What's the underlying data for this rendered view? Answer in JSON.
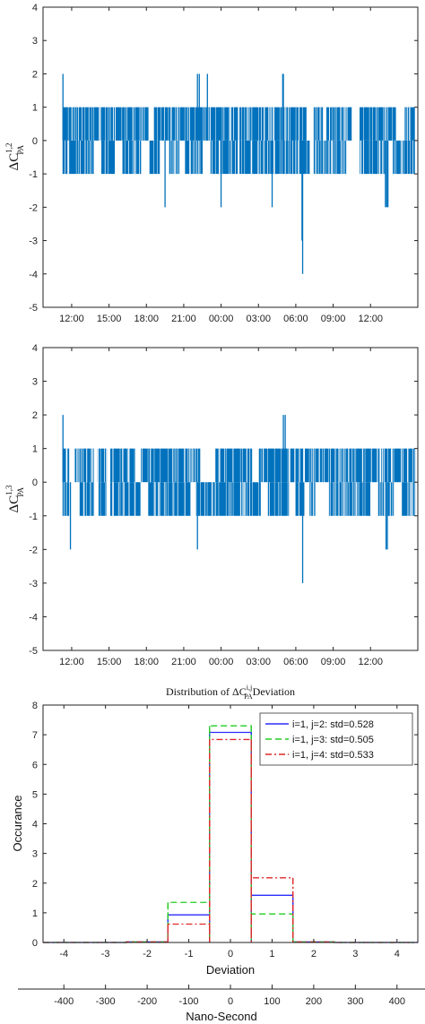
{
  "chart_data": [
    {
      "type": "line",
      "ylabel_base": "ΔC",
      "ylabel_sup": "1,2",
      "ylabel_sub": "PA",
      "ylim": [
        -5,
        4
      ],
      "yticks": [
        -5,
        -4,
        -3,
        -2,
        -1,
        0,
        1,
        2,
        3,
        4
      ],
      "xticks": [
        "12:00",
        "15:00",
        "18:00",
        "21:00",
        "00:00",
        "03:00",
        "06:00",
        "09:00",
        "12:00"
      ],
      "xrange_hours": [
        9.7,
        39.8
      ],
      "xtick_hours": [
        12,
        15,
        18,
        21,
        24,
        27,
        30,
        33,
        36
      ],
      "series": [
        {
          "values_range": [
            -1,
            1
          ],
          "color": "#0072BD"
        }
      ],
      "spikes": [
        {
          "x": 11.3,
          "y": 2
        },
        {
          "x": 19.5,
          "y": -2
        },
        {
          "x": 22.1,
          "y": 2
        },
        {
          "x": 22.25,
          "y": 2
        },
        {
          "x": 22.9,
          "y": 2
        },
        {
          "x": 24.0,
          "y": -2
        },
        {
          "x": 28.1,
          "y": -2
        },
        {
          "x": 28.95,
          "y": 2
        },
        {
          "x": 29.0,
          "y": 2
        },
        {
          "x": 30.5,
          "y": -3
        },
        {
          "x": 30.55,
          "y": -4
        },
        {
          "x": 37.2,
          "y": -2
        },
        {
          "x": 37.3,
          "y": -2
        },
        {
          "x": 37.4,
          "y": -2
        }
      ],
      "grid": false
    },
    {
      "type": "line",
      "ylabel_base": "ΔC",
      "ylabel_sup": "1,3",
      "ylabel_sub": "PA",
      "ylim": [
        -5,
        4
      ],
      "yticks": [
        -5,
        -4,
        -3,
        -2,
        -1,
        0,
        1,
        2,
        3,
        4
      ],
      "xticks": [
        "12:00",
        "15:00",
        "18:00",
        "21:00",
        "00:00",
        "03:00",
        "06:00",
        "09:00",
        "12:00"
      ],
      "xrange_hours": [
        9.7,
        39.8
      ],
      "xtick_hours": [
        12,
        15,
        18,
        21,
        24,
        27,
        30,
        33,
        36
      ],
      "series": [
        {
          "values_range": [
            -1,
            1
          ],
          "color": "#0072BD"
        }
      ],
      "spikes": [
        {
          "x": 11.3,
          "y": 2
        },
        {
          "x": 11.9,
          "y": -2
        },
        {
          "x": 22.1,
          "y": -2
        },
        {
          "x": 29.0,
          "y": 2
        },
        {
          "x": 29.15,
          "y": 2
        },
        {
          "x": 30.55,
          "y": -3
        },
        {
          "x": 37.25,
          "y": -2
        },
        {
          "x": 37.35,
          "y": -2
        }
      ],
      "grid": false
    },
    {
      "type": "bar",
      "title_prefix": "Distribution of ",
      "title_base": "ΔC",
      "title_sup": "i,j",
      "title_sub": "PA",
      "title_suffix": "Deviation",
      "xlabel": "Deviation",
      "ylabel": "Occurance",
      "ylim": [
        0,
        8
      ],
      "xlim": [
        -4.5,
        4.5
      ],
      "yticks": [
        0,
        1,
        2,
        3,
        4,
        5,
        6,
        7,
        8
      ],
      "xticks": [
        -4,
        -3,
        -2,
        -1,
        0,
        1,
        2,
        3,
        4
      ],
      "categories": [
        -4,
        -3,
        -2,
        -1,
        0,
        1,
        2,
        3,
        4
      ],
      "series": [
        {
          "name": "i=1, j=2: std=0.528",
          "color": "#2B2BFF",
          "dash": "",
          "values": [
            0,
            0,
            0.02,
            0.93,
            7.08,
            1.59,
            0.02,
            0,
            0
          ]
        },
        {
          "name": "i=1, j=3: std=0.505",
          "color": "#22CC22",
          "dash": "7,4",
          "values": [
            0,
            0,
            0.02,
            1.35,
            7.3,
            0.96,
            0.02,
            0,
            0
          ]
        },
        {
          "name": "i=1, j=4: std=0.533",
          "color": "#E0282A",
          "dash": "7,3,2,3",
          "values": [
            0,
            0,
            0.02,
            0.62,
            6.84,
            2.18,
            0.02,
            0,
            0
          ]
        }
      ],
      "secondary_axis": {
        "label": "Nano-Second",
        "ticks": [
          -400,
          -300,
          -200,
          -100,
          0,
          100,
          200,
          300,
          400
        ]
      },
      "legend": "top-right",
      "grid": false
    }
  ]
}
